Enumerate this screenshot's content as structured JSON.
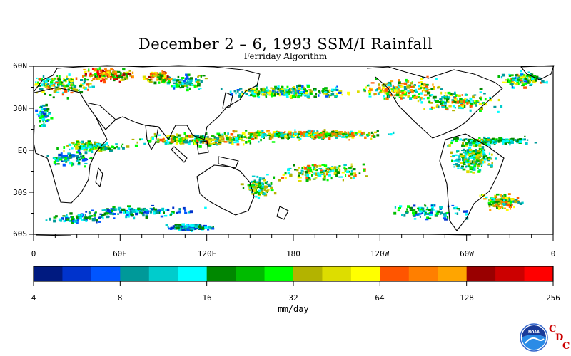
{
  "title": "December 2 – 6, 1993 SSM/I Rainfall",
  "subtitle": "Ferriday Algorithm",
  "lat_labels": [
    "60N",
    "30N",
    "EQ",
    "30S",
    "60S"
  ],
  "lon_labels": [
    "0",
    "60E",
    "120E",
    "180",
    "120W",
    "60W",
    "0"
  ],
  "colorbar": {
    "tick_labels": [
      "4",
      "8",
      "16",
      "32",
      "64",
      "128",
      "256"
    ],
    "unit": "mm/day",
    "colors": [
      "#001a80",
      "#0033cc",
      "#0055ff",
      "#009999",
      "#00cccc",
      "#00ffff",
      "#008800",
      "#00bb00",
      "#00ff00",
      "#b3b300",
      "#dddd00",
      "#ffff00",
      "#ff5500",
      "#ff7f00",
      "#ffa500",
      "#990000",
      "#cc0000",
      "#ff0000"
    ]
  },
  "logo": {
    "text": "NOAA",
    "cdc_letters": [
      "C",
      "D",
      "C"
    ]
  }
}
